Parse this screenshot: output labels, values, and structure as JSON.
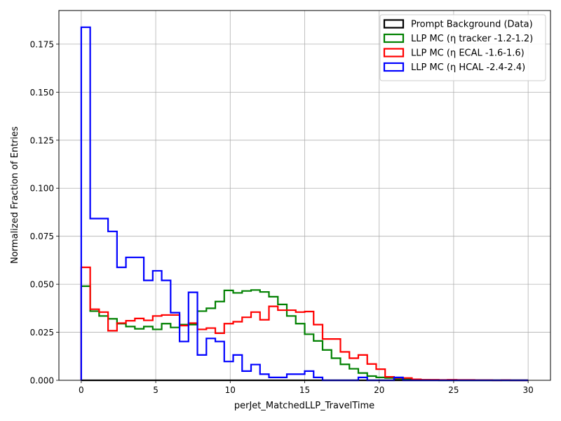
{
  "chart_data": {
    "type": "step-histogram",
    "title": "",
    "xlabel": "perJet_MatchedLLP_TravelTime",
    "ylabel": "Normalized Fraction of Entries",
    "xlim": [
      -1.5,
      31.5
    ],
    "ylim": [
      0,
      0.1925
    ],
    "xticks": [
      0,
      5,
      10,
      15,
      20,
      25,
      30
    ],
    "xtick_labels": [
      "0",
      "5",
      "10",
      "15",
      "20",
      "25",
      "30"
    ],
    "yticks": [
      0,
      0.025,
      0.05,
      0.075,
      0.1,
      0.125,
      0.15,
      0.175
    ],
    "ytick_labels": [
      "0.000",
      "0.025",
      "0.050",
      "0.075",
      "0.100",
      "0.125",
      "0.150",
      "0.175"
    ],
    "grid": true,
    "legend_position": "top-right",
    "bin_edges": [
      0,
      0.6,
      1.2,
      1.8,
      2.4,
      3.0,
      3.6,
      4.2,
      4.8,
      5.4,
      6.0,
      6.6,
      7.2,
      7.8,
      8.4,
      9.0,
      9.6,
      10.2,
      10.8,
      11.4,
      12.0,
      12.6,
      13.2,
      13.8,
      14.4,
      15.0,
      15.6,
      16.2,
      16.8,
      17.4,
      18.0,
      18.6,
      19.2,
      19.8,
      20.4,
      21.0,
      21.6,
      22.2,
      22.8,
      23.4,
      24.0,
      24.6,
      25.2,
      25.8,
      26.4,
      27.0,
      27.6,
      28.2,
      28.8,
      29.4,
      30.0
    ],
    "series": [
      {
        "name": "Prompt Background (Data)",
        "color": "#000000",
        "values": [
          0,
          0,
          0,
          0,
          0,
          0,
          0,
          0,
          0,
          0,
          0,
          0,
          0,
          0,
          0,
          0,
          0,
          0,
          0,
          0,
          0,
          0,
          0,
          0,
          0,
          0,
          0,
          0,
          0,
          0,
          0,
          0,
          0,
          0,
          0,
          0,
          0,
          0,
          0,
          0,
          0,
          0,
          0,
          0,
          0,
          0,
          0,
          0,
          0,
          0
        ]
      },
      {
        "name": "LLP MC (η tracker -1.2-1.2)",
        "color": "#008000",
        "values": [
          0.049,
          0.036,
          0.0335,
          0.032,
          0.0295,
          0.028,
          0.0268,
          0.028,
          0.0265,
          0.0295,
          0.0275,
          0.029,
          0.029,
          0.036,
          0.0375,
          0.041,
          0.0468,
          0.0455,
          0.0465,
          0.047,
          0.046,
          0.0435,
          0.0395,
          0.0335,
          0.0295,
          0.024,
          0.0205,
          0.0158,
          0.0115,
          0.0083,
          0.006,
          0.0038,
          0.0022,
          0.0015,
          0.0012,
          0.0008,
          0.0005,
          0.0003,
          0.0002,
          0.0001,
          0,
          0,
          0,
          0,
          0,
          0,
          0,
          0,
          0,
          0
        ]
      },
      {
        "name": "LLP MC (η ECAL -1.6-1.6)",
        "color": "#ff0000",
        "values": [
          0.0588,
          0.037,
          0.0355,
          0.0258,
          0.0298,
          0.031,
          0.0322,
          0.0312,
          0.0335,
          0.034,
          0.034,
          0.0285,
          0.0298,
          0.0265,
          0.0272,
          0.0245,
          0.0295,
          0.0305,
          0.0328,
          0.0355,
          0.0315,
          0.0385,
          0.0365,
          0.0365,
          0.0355,
          0.0358,
          0.029,
          0.0215,
          0.0215,
          0.0148,
          0.0115,
          0.0132,
          0.0085,
          0.0058,
          0.0018,
          0.0012,
          0.0012,
          0.0005,
          0.0003,
          0.0003,
          0.0002,
          0.0003,
          0.0002,
          0.0002,
          0.0001,
          0.0001,
          0,
          0.0001,
          0,
          0
        ]
      },
      {
        "name": "LLP MC (η HCAL -2.4-2.4)",
        "color": "#0000ff",
        "values": [
          0.1838,
          0.0842,
          0.0842,
          0.0775,
          0.0588,
          0.064,
          0.064,
          0.052,
          0.057,
          0.052,
          0.0352,
          0.0202,
          0.0458,
          0.0132,
          0.0218,
          0.0202,
          0.0098,
          0.0132,
          0.0048,
          0.0082,
          0.0032,
          0.0015,
          0.0015,
          0.0032,
          0.0032,
          0.0048,
          0.0015,
          0,
          0,
          0,
          0,
          0.0015,
          0,
          0,
          0,
          0.0015,
          0,
          0,
          0,
          0,
          0,
          0,
          0,
          0,
          0,
          0,
          0,
          0,
          0,
          0
        ]
      }
    ]
  }
}
